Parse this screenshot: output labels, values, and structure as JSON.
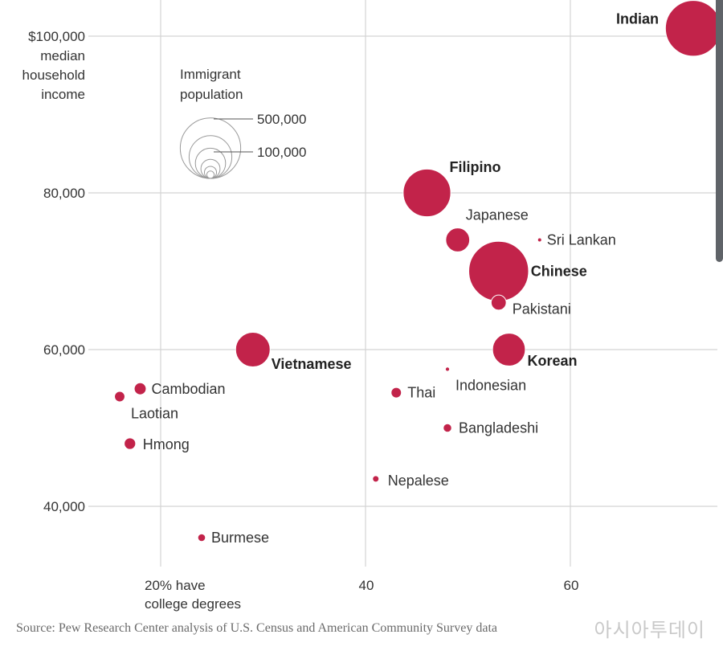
{
  "chart_data": {
    "type": "scatter",
    "title": "",
    "bubble_color": "#c2234a",
    "x_ticks": [
      {
        "value": 20,
        "lines": [
          "20% have",
          "college degrees"
        ]
      },
      {
        "value": 40,
        "lines": [
          "40"
        ]
      },
      {
        "value": 60,
        "lines": [
          "60"
        ]
      }
    ],
    "y_ticks": [
      {
        "value": 100000,
        "lines": [
          "$100,000",
          "median",
          "household",
          "income"
        ]
      },
      {
        "value": 80000,
        "lines": [
          "80,000"
        ]
      },
      {
        "value": 60000,
        "lines": [
          "60,000"
        ]
      },
      {
        "value": 40000,
        "lines": [
          "40,000"
        ]
      }
    ],
    "xlim": [
      10,
      77
    ],
    "ylim": [
      32000,
      104000
    ],
    "grid": true,
    "size_legend": {
      "title_lines": [
        "Immigrant",
        "population"
      ],
      "entries": [
        {
          "label": "500,000",
          "size": 500000
        },
        {
          "label": "100,000",
          "size": 100000
        }
      ]
    },
    "points": [
      {
        "label": "Indian",
        "x": 72,
        "y": 101000,
        "size": 2600000,
        "bold": true
      },
      {
        "label": "Filipino",
        "x": 46,
        "y": 80000,
        "size": 1900000,
        "bold": true
      },
      {
        "label": "Japanese",
        "x": 49,
        "y": 74000,
        "size": 480000,
        "bold": false
      },
      {
        "label": "Sri Lankan",
        "x": 57,
        "y": 74000,
        "size": 7000,
        "bold": false
      },
      {
        "label": "Chinese",
        "x": 53,
        "y": 70000,
        "size": 3000000,
        "bold": true
      },
      {
        "label": "Pakistani",
        "x": 53,
        "y": 66000,
        "size": 190000,
        "bold": false
      },
      {
        "label": "Vietnamese",
        "x": 29,
        "y": 60000,
        "size": 1000000,
        "bold": true
      },
      {
        "label": "Korean",
        "x": 54,
        "y": 60000,
        "size": 900000,
        "bold": true
      },
      {
        "label": "Indonesian",
        "x": 48,
        "y": 57500,
        "size": 15000,
        "bold": false
      },
      {
        "label": "Cambodian",
        "x": 18,
        "y": 55000,
        "size": 120000,
        "bold": false
      },
      {
        "label": "Laotian",
        "x": 16,
        "y": 54000,
        "size": 90000,
        "bold": false
      },
      {
        "label": "Thai",
        "x": 43,
        "y": 54500,
        "size": 90000,
        "bold": false
      },
      {
        "label": "Bangladeshi",
        "x": 48,
        "y": 50000,
        "size": 60000,
        "bold": false
      },
      {
        "label": "Hmong",
        "x": 17,
        "y": 48000,
        "size": 110000,
        "bold": false
      },
      {
        "label": "Nepalese",
        "x": 41,
        "y": 43500,
        "size": 35000,
        "bold": false
      },
      {
        "label": "Burmese",
        "x": 24,
        "y": 36000,
        "size": 50000,
        "bold": false
      }
    ]
  },
  "source": "Source: Pew Research Center analysis of U.S. Census and American Community Survey data",
  "watermark": "아시아투데이"
}
